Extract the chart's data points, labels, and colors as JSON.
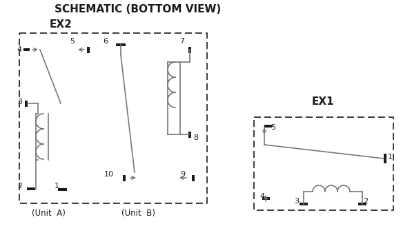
{
  "title": "SCHEMATIC (BOTTOM VIEW)",
  "ex2_label": "EX2",
  "ex1_label": "EX1",
  "unit_a": "(Unit  A)",
  "unit_b": "(Unit  B)",
  "bg_color": "#ffffff",
  "gray": "#777777",
  "dark": "#1a1a1a",
  "fig_w": 5.97,
  "fig_h": 3.41,
  "dpi": 100
}
